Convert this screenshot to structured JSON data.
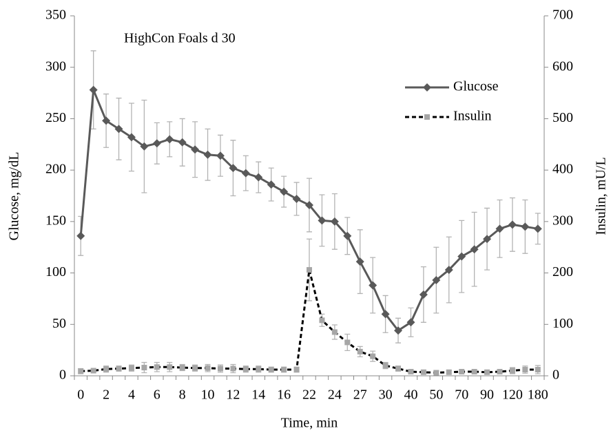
{
  "chart_data": {
    "type": "line",
    "annotation": "HighCon Foals d 30",
    "x_label": "Time, min",
    "y_label": "Glucose, mg/dL",
    "y2_label": "Insulin, mU/L",
    "categories": [
      "0",
      null,
      "2",
      null,
      "4",
      null,
      "6",
      null,
      "8",
      null,
      "10",
      null,
      "12",
      null,
      "14",
      null,
      "16",
      null,
      "22",
      null,
      "24",
      null,
      "27",
      null,
      "30",
      null,
      "40",
      null,
      "50",
      null,
      "70",
      null,
      "90",
      null,
      "120",
      null,
      "180"
    ],
    "series": [
      {
        "name": "Glucose",
        "color": "#595959",
        "marker": "diamond",
        "dash": false,
        "values": [
          136,
          278,
          248,
          240,
          232,
          223,
          226,
          230,
          227,
          220,
          215,
          214,
          202,
          197,
          193,
          186,
          179,
          172,
          166,
          151,
          150,
          136,
          111,
          88,
          60,
          44,
          52,
          79,
          93,
          103,
          116,
          123,
          133,
          143,
          147,
          145,
          143
        ],
        "errors": [
          19,
          38,
          26,
          30,
          33,
          45,
          20,
          17,
          23,
          27,
          25,
          20,
          27,
          17,
          15,
          16,
          15,
          16,
          26,
          25,
          27,
          18,
          31,
          27,
          18,
          12,
          14,
          27,
          32,
          32,
          35,
          36,
          30,
          28,
          26,
          26,
          15
        ]
      },
      {
        "name": "Insulin",
        "color": "#000000",
        "marker_color": "#a6a6a6",
        "marker": "square",
        "dash": true,
        "axis": "y2",
        "values": [
          9,
          10,
          13,
          14,
          15,
          16,
          17,
          17,
          16,
          15,
          15,
          14,
          14,
          13,
          13,
          12,
          12,
          12,
          206,
          108,
          85,
          65,
          47,
          38,
          20,
          14,
          8,
          7,
          6,
          7,
          8,
          8,
          7,
          8,
          10,
          12,
          12
        ],
        "errors": [
          5,
          4,
          6,
          5,
          6,
          10,
          9,
          9,
          6,
          6,
          7,
          7,
          8,
          6,
          6,
          5,
          5,
          5,
          60,
          12,
          14,
          16,
          10,
          10,
          6,
          5,
          3,
          3,
          3,
          3,
          3,
          4,
          3,
          4,
          6,
          7,
          8
        ]
      }
    ],
    "ylim": [
      0,
      350
    ],
    "yticks": [
      0,
      50,
      100,
      150,
      200,
      250,
      300,
      350
    ],
    "y2lim": [
      0,
      700
    ],
    "y2ticks": [
      0,
      100,
      200,
      300,
      400,
      500,
      600,
      700
    ],
    "error_color": "#b3b3b3",
    "legend": "upper right",
    "grid": false
  }
}
